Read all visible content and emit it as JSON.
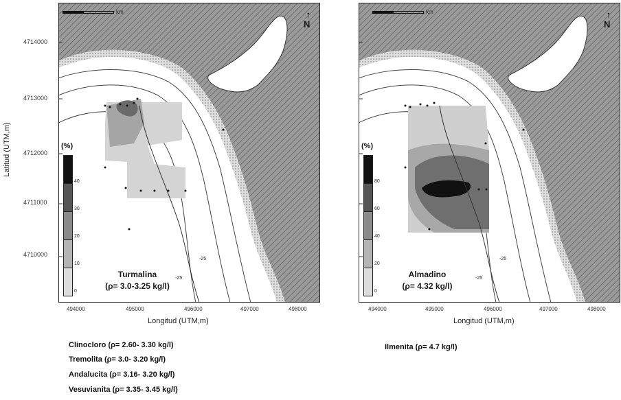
{
  "figure": {
    "y_axis_title": "Latitud (UTM,m)",
    "y_ticks": [
      "4714000",
      "4713000",
      "4712000",
      "4711000",
      "4710000"
    ],
    "x_ticks": [
      "494000",
      "495000",
      "496000",
      "497000",
      "498000"
    ],
    "x_axis_title": "Longitud (UTM,m)",
    "scale_label": "km",
    "north_label": "N"
  },
  "maps": [
    {
      "id": "left",
      "title": "Turmalina",
      "density": "(ρ= 3.0-3.25 kg/l)",
      "legend_title": "(%)",
      "legend_ticks": [
        "40",
        "30",
        "20",
        "10",
        "0"
      ],
      "legend_colors": [
        "#111111",
        "#555555",
        "#8a8a8a",
        "#b4b4b4",
        "#dcdcdc"
      ],
      "contour_labels": [
        "-25",
        "-25"
      ]
    },
    {
      "id": "right",
      "title": "Almadino",
      "density": "(ρ= 4.32 kg/l)",
      "legend_title": "(%)",
      "legend_ticks": [
        "80",
        "60",
        "40",
        "20",
        "0"
      ],
      "legend_colors": [
        "#111111",
        "#555555",
        "#8a8a8a",
        "#b4b4b4",
        "#dcdcdc"
      ],
      "contour_labels": [
        "-25",
        "-25"
      ]
    }
  ],
  "captions": {
    "left": [
      "Clinocloro (ρ= 2.60- 3.30 kg/l)",
      "Tremolita (ρ= 3.0- 3.20 kg/l)",
      "Andalucita (ρ= 3.16- 3.20 kg/l)",
      "Vesuvianita (ρ= 3.35- 3.45 kg/l)"
    ],
    "right": [
      "Ilmenita (ρ= 4.7 kg/l)"
    ]
  },
  "colors": {
    "land": "#8f8f8f",
    "sea": "#ffffff",
    "shore": "#c8c8c8"
  }
}
